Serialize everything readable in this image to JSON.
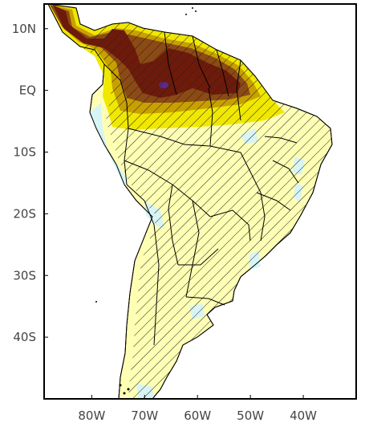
{
  "map": {
    "lat_labels": [
      "10N",
      "EQ",
      "10S",
      "20S",
      "30S",
      "40S"
    ],
    "lon_labels": [
      "80W",
      "70W",
      "60W",
      "50W",
      "40W"
    ],
    "lat_values": [
      10,
      0,
      -10,
      -20,
      -30,
      -40
    ],
    "lon_values": [
      -80,
      -70,
      -60,
      -50,
      -40
    ],
    "extent": {
      "lon_min": -89,
      "lon_max": -30,
      "lat_min": -50,
      "lat_max": 14
    },
    "colors": {
      "land_base": "#ffffb4",
      "light_blue": "#d8f4f4",
      "yellow": "#f0e800",
      "dark_yellow": "#c8a000",
      "brown": "#8c4a14",
      "dark_red": "#6e1a0a",
      "purple": "#5a2a8c",
      "hatch": "#222222",
      "outline": "#000000"
    }
  }
}
